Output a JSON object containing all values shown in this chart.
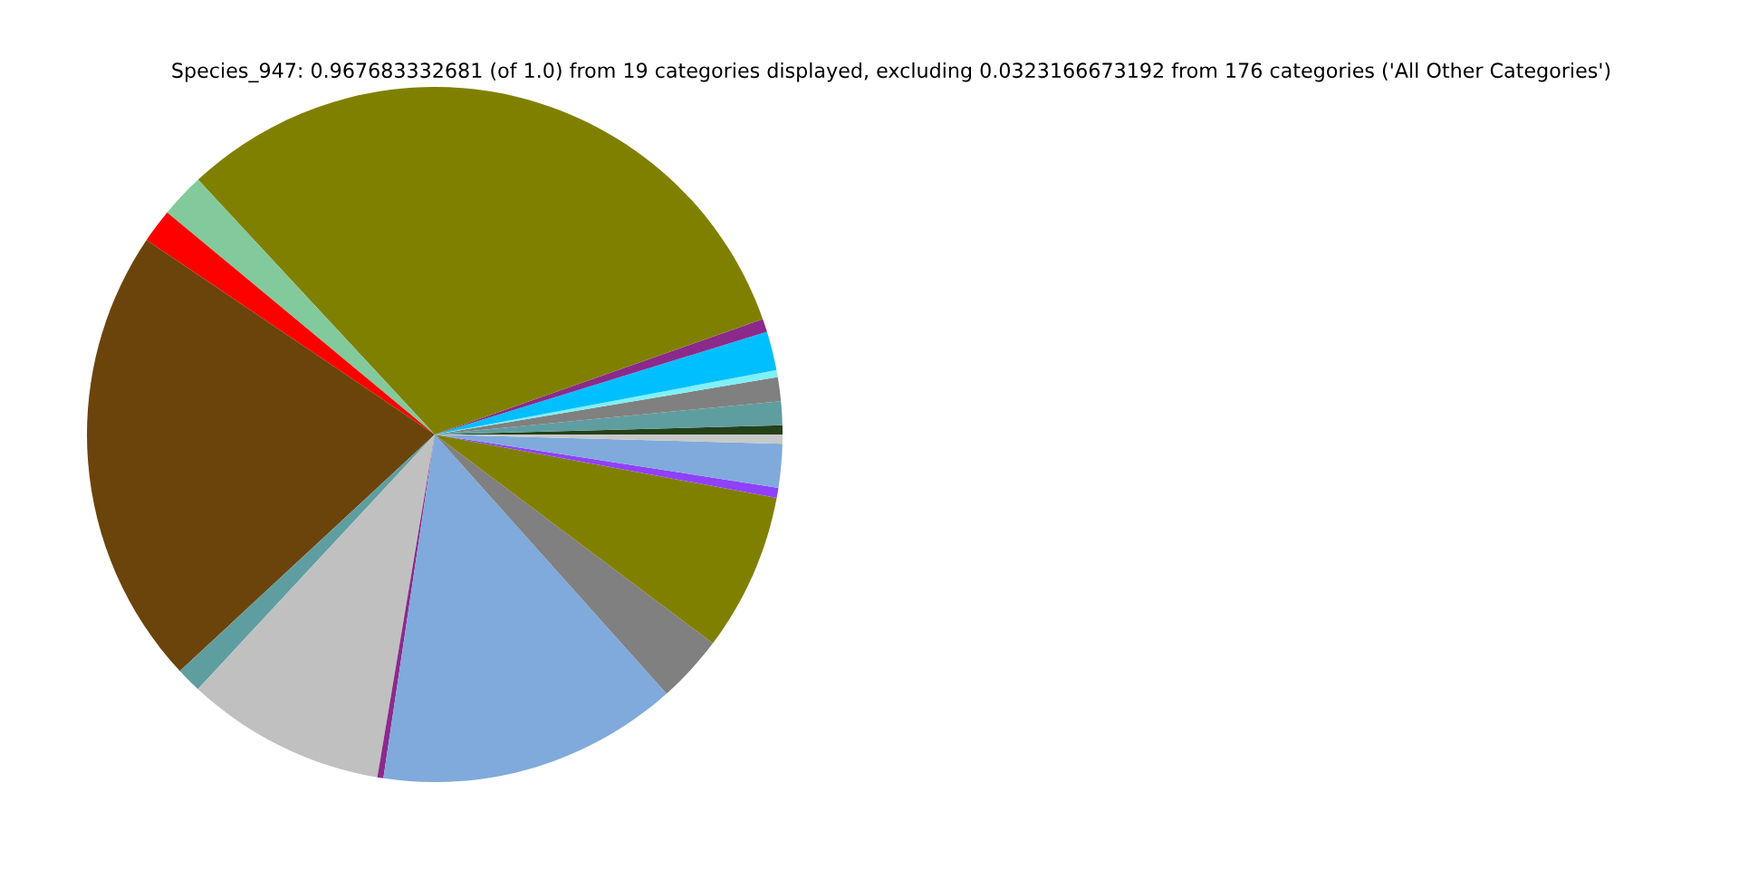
{
  "chart_data": {
    "type": "pie",
    "title": "Species_947: 0.967683332681 (of 1.0) from 19 categories displayed, excluding 0.0323166673192 from 176 categories ('All Other Categories')",
    "categories": [
      null,
      null,
      null,
      null,
      null,
      null,
      null,
      null,
      null,
      null,
      null,
      null,
      null,
      null,
      null,
      null,
      null,
      null,
      null
    ],
    "values": [
      0.42,
      1.11,
      1.11,
      0.33,
      1.81,
      0.61,
      31.52,
      2.06,
      1.58,
      21.36,
      1.17,
      9.28,
      0.28,
      13.97,
      3.14,
      7.33,
      0.47,
      2.03,
      0.42
    ],
    "colors": [
      "#254117",
      "#5f9ea0",
      "#808080",
      "#80f0f8",
      "#00bfff",
      "#8b2a8b",
      "#808000",
      "#82ca9c",
      "#ff0000",
      "#6b440b",
      "#5f9ea0",
      "#c0c0c0",
      "#8b2a8b",
      "#7faadb",
      "#808080",
      "#808000",
      "#9040ff",
      "#7faadb",
      "#c8c8c8"
    ]
  }
}
